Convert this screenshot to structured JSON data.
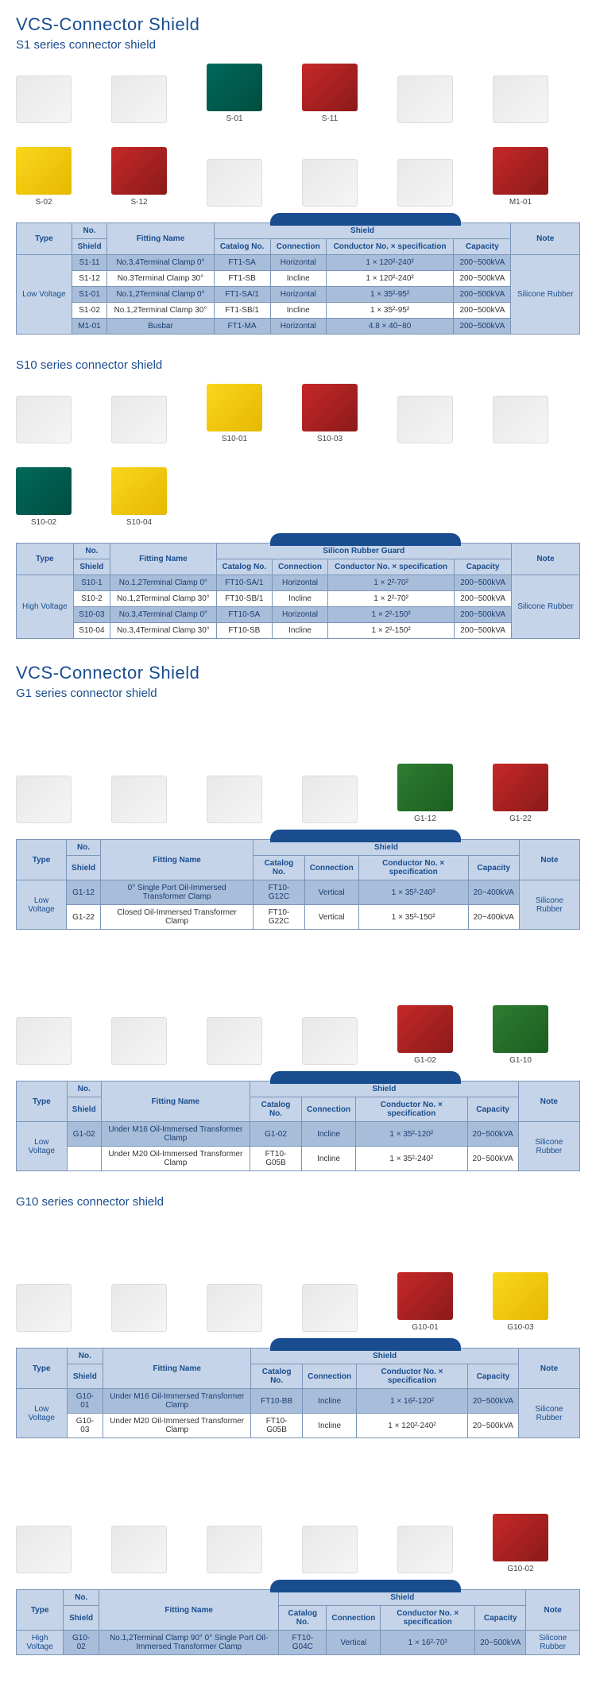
{
  "sections": [
    {
      "mainTitle": "VCS-Connector Shield",
      "subTitle": "S1 series connector shield",
      "products": [
        {
          "label": "",
          "variant": ""
        },
        {
          "label": "",
          "variant": ""
        },
        {
          "label": "S-01",
          "variant": "teal"
        },
        {
          "label": "S-11",
          "variant": "red"
        },
        {
          "label": "",
          "variant": ""
        },
        {
          "label": "",
          "variant": ""
        },
        {
          "label": "S-02",
          "variant": "yellow"
        },
        {
          "label": "S-12",
          "variant": "red"
        },
        {
          "label": "",
          "variant": ""
        },
        {
          "label": "",
          "variant": ""
        },
        {
          "label": "",
          "variant": ""
        },
        {
          "label": "M1-01",
          "variant": "red"
        }
      ],
      "table": {
        "header": {
          "type": "Type",
          "no": "No.",
          "fitting": "Fitting Name",
          "shieldGroup": "Shield",
          "shield": "Shield",
          "catalog": "Catalog No.",
          "connection": "Connection",
          "conductor": "Conductor No. × specification",
          "capacity": "Capacity",
          "note": "Note"
        },
        "typeValue": "Low Voltage",
        "noteValue": "Silicone Rubber",
        "rows": [
          {
            "shield": "S1-11",
            "fitting": "No.3,4Terminal Clamp 0°",
            "catalog": "FT1-SA",
            "connection": "Horizontal",
            "conductor": "1 × 120²-240²",
            "capacity": "200~500kVA"
          },
          {
            "shield": "S1-12",
            "fitting": "No.3Terminal Clamp 30°",
            "catalog": "FT1-SB",
            "connection": "Incline",
            "conductor": "1 × 120²-240²",
            "capacity": "200~500kVA"
          },
          {
            "shield": "S1-01",
            "fitting": "No.1,2Terminal Clamp 0°",
            "catalog": "FT1-SA/1",
            "connection": "Horizontal",
            "conductor": "1 × 35²-95²",
            "capacity": "200~500kVA"
          },
          {
            "shield": "S1-02",
            "fitting": "No.1,2Terminal Clamp 30°",
            "catalog": "FT1-SB/1",
            "connection": "Incline",
            "conductor": "1 × 35²-95²",
            "capacity": "200~500kVA"
          },
          {
            "shield": "M1-01",
            "fitting": "Busbar",
            "catalog": "FT1-MA",
            "connection": "Horizontal",
            "conductor": "4.8 × 40~80",
            "capacity": "200~500kVA"
          }
        ]
      }
    },
    {
      "mainTitle": "",
      "subTitle": "S10 series connector shield",
      "products": [
        {
          "label": "",
          "variant": ""
        },
        {
          "label": "",
          "variant": ""
        },
        {
          "label": "S10-01",
          "variant": "yellow"
        },
        {
          "label": "S10-03",
          "variant": "red"
        },
        {
          "label": "",
          "variant": ""
        },
        {
          "label": "",
          "variant": ""
        },
        {
          "label": "S10-02",
          "variant": "teal"
        },
        {
          "label": "S10-04",
          "variant": "yellow"
        }
      ],
      "table": {
        "header": {
          "type": "Type",
          "no": "No.",
          "fitting": "Fitting Name",
          "shieldGroup": "Silicon Rubber Guard",
          "shield": "Shield",
          "catalog": "Catalog No.",
          "connection": "Connection",
          "conductor": "Conductor No. × specification",
          "capacity": "Capacity",
          "note": "Note"
        },
        "typeValue": "High Voltage",
        "noteValue": "Silicone Rubber",
        "rows": [
          {
            "shield": "S10-1",
            "fitting": "No.1,2Terminal Clamp 0°",
            "catalog": "FT10-SA/1",
            "connection": "Horizontal",
            "conductor": "1 × 2²-70²",
            "capacity": "200~500kVA"
          },
          {
            "shield": "S10-2",
            "fitting": "No.1,2Terminal Clamp 30°",
            "catalog": "FT10-SB/1",
            "connection": "Incline",
            "conductor": "1 × 2²-70²",
            "capacity": "200~500kVA"
          },
          {
            "shield": "S10-03",
            "fitting": "No.3,4Terminal Clamp 0°",
            "catalog": "FT10-SA",
            "connection": "Horizontal",
            "conductor": "1 × 2²-150²",
            "capacity": "200~500kVA"
          },
          {
            "shield": "S10-04",
            "fitting": "No.3,4Terminal Clamp 30°",
            "catalog": "FT10-SB",
            "connection": "Incline",
            "conductor": "1 × 2²-150²",
            "capacity": "200~500kVA"
          }
        ]
      }
    },
    {
      "mainTitle": "VCS-Connector Shield",
      "subTitle": "G1 series connector shield",
      "products": [
        {
          "label": "",
          "variant": ""
        },
        {
          "label": "",
          "variant": ""
        },
        {
          "label": "",
          "variant": ""
        },
        {
          "label": "",
          "variant": ""
        },
        {
          "label": "G1-12",
          "variant": "green"
        },
        {
          "label": "G1-22",
          "variant": "red"
        }
      ],
      "table": {
        "header": {
          "type": "Type",
          "no": "No.",
          "fitting": "Fitting Name",
          "shieldGroup": "Shield",
          "shield": "Shield",
          "catalog": "Catalog No.",
          "connection": "Connection",
          "conductor": "Conductor No. × specification",
          "capacity": "Capacity",
          "note": "Note"
        },
        "typeValue": "Low Voltage",
        "noteValue": "Silicone Rubber",
        "rows": [
          {
            "shield": "G1-12",
            "fitting": "0° Single Port Oil-Immersed Transformer Clamp",
            "catalog": "FT10-G12C",
            "connection": "Vertical",
            "conductor": "1 × 35²-240²",
            "capacity": "20~400kVA"
          },
          {
            "shield": "G1-22",
            "fitting": "Closed Oil-Immersed Transformer Clamp",
            "catalog": "FT10-G22C",
            "connection": "Vertical",
            "conductor": "1 × 35²-150²",
            "capacity": "20~400kVA"
          }
        ]
      }
    },
    {
      "mainTitle": "",
      "subTitle": "",
      "products": [
        {
          "label": "",
          "variant": ""
        },
        {
          "label": "",
          "variant": ""
        },
        {
          "label": "",
          "variant": ""
        },
        {
          "label": "",
          "variant": ""
        },
        {
          "label": "G1-02",
          "variant": "red"
        },
        {
          "label": "G1-10",
          "variant": "green"
        }
      ],
      "table": {
        "header": {
          "type": "Type",
          "no": "No.",
          "fitting": "Fitting Name",
          "shieldGroup": "Shield",
          "shield": "Shield",
          "catalog": "Catalog No.",
          "connection": "Connection",
          "conductor": "Conductor No. × specification",
          "capacity": "Capacity",
          "note": "Note"
        },
        "typeValue": "Low Voltage",
        "noteValue": "Silicone Rubber",
        "rows": [
          {
            "shield": "G1-02",
            "fitting": "Under M16 Oil-Immersed Transformer Clamp",
            "catalog": "G1-02",
            "connection": "Incline",
            "conductor": "1 × 35²-120²",
            "capacity": "20~500kVA"
          },
          {
            "shield": "",
            "fitting": "Under M20 Oil-Immersed Transformer Clamp",
            "catalog": "FT10-G05B",
            "connection": "Incline",
            "conductor": "1 × 35²-240²",
            "capacity": "20~500kVA"
          }
        ]
      }
    },
    {
      "mainTitle": "",
      "subTitle": "G10 series connector shield",
      "products": [
        {
          "label": "",
          "variant": ""
        },
        {
          "label": "",
          "variant": ""
        },
        {
          "label": "",
          "variant": ""
        },
        {
          "label": "",
          "variant": ""
        },
        {
          "label": "G10-01",
          "variant": "red"
        },
        {
          "label": "G10-03",
          "variant": "yellow"
        }
      ],
      "table": {
        "header": {
          "type": "Type",
          "no": "No.",
          "fitting": "Fitting Name",
          "shieldGroup": "Shield",
          "shield": "Shield",
          "catalog": "Catalog No.",
          "connection": "Connection",
          "conductor": "Conductor No. × specification",
          "capacity": "Capacity",
          "note": "Note"
        },
        "typeValue": "Low Voltage",
        "noteValue": "Silicone Rubber",
        "rows": [
          {
            "shield": "G10-01",
            "fitting": "Under M16 Oil-Immersed Transformer Clamp",
            "catalog": "FT10-BB",
            "connection": "Incline",
            "conductor": "1 × 16²-120²",
            "capacity": "20~500kVA"
          },
          {
            "shield": "G10-03",
            "fitting": "Under M20 Oil-Immersed Transformer Clamp",
            "catalog": "FT10-G05B",
            "connection": "Incline",
            "conductor": "1 × 120²-240²",
            "capacity": "20~500kVA"
          }
        ]
      }
    },
    {
      "mainTitle": "",
      "subTitle": "",
      "products": [
        {
          "label": "",
          "variant": ""
        },
        {
          "label": "",
          "variant": ""
        },
        {
          "label": "",
          "variant": ""
        },
        {
          "label": "",
          "variant": ""
        },
        {
          "label": "",
          "variant": ""
        },
        {
          "label": "G10-02",
          "variant": "red"
        }
      ],
      "table": {
        "header": {
          "type": "Type",
          "no": "No.",
          "fitting": "Fitting Name",
          "shieldGroup": "Shield",
          "shield": "Shield",
          "catalog": "Catalog No.",
          "connection": "Connection",
          "conductor": "Conductor No. × specification",
          "capacity": "Capacity",
          "note": "Note"
        },
        "typeValue": "High Voltage",
        "noteValue": "Silicone Rubber",
        "rows": [
          {
            "shield": "G10-02",
            "fitting": "No.1,2Terminal Clamp 90° 0° Single Port Oil-Immersed Transformer Clamp",
            "catalog": "FT10-G04C",
            "connection": "Vertical",
            "conductor": "1 × 16²-70²",
            "capacity": "20~500kVA"
          }
        ]
      }
    }
  ],
  "colors": {
    "primary": "#1a4d8f",
    "headerBg": "#c5d4e8",
    "rowOdd": "#a8bdd9",
    "rowEven": "#ffffff",
    "border": "#7a95b8"
  }
}
